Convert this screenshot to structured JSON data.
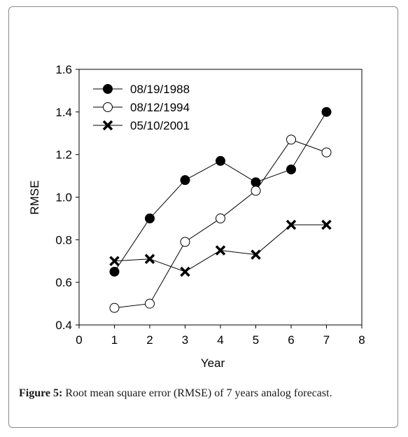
{
  "chart_data": {
    "type": "line",
    "xlabel": "Year",
    "ylabel": "RMSE",
    "xlim": [
      0,
      8
    ],
    "ylim": [
      0.4,
      1.6
    ],
    "xticks": [
      0,
      1,
      2,
      3,
      4,
      5,
      6,
      7,
      8
    ],
    "yticks": [
      0.4,
      0.6,
      0.8,
      1.0,
      1.2,
      1.4,
      1.6
    ],
    "ytick_labels": [
      "0.4",
      "0.6",
      "0.8",
      "1.0",
      "1.2",
      "1.4",
      "1.6"
    ],
    "grid": false,
    "legend_position": "top-left",
    "x": [
      1,
      2,
      3,
      4,
      5,
      6,
      7
    ],
    "series": [
      {
        "name": "08/19/1988",
        "marker": "filled-circle",
        "values": [
          0.65,
          0.9,
          1.08,
          1.17,
          1.07,
          1.13,
          1.4
        ]
      },
      {
        "name": "08/12/1994",
        "marker": "open-circle",
        "values": [
          0.48,
          0.5,
          0.79,
          0.9,
          1.03,
          1.27,
          1.21
        ]
      },
      {
        "name": "05/10/2001",
        "marker": "x",
        "values": [
          0.7,
          0.71,
          0.65,
          0.75,
          0.73,
          0.87,
          0.87
        ]
      }
    ]
  },
  "caption": {
    "label": "Figure 5:",
    "text": " Root mean square error (RMSE) of 7 years analog forecast."
  }
}
